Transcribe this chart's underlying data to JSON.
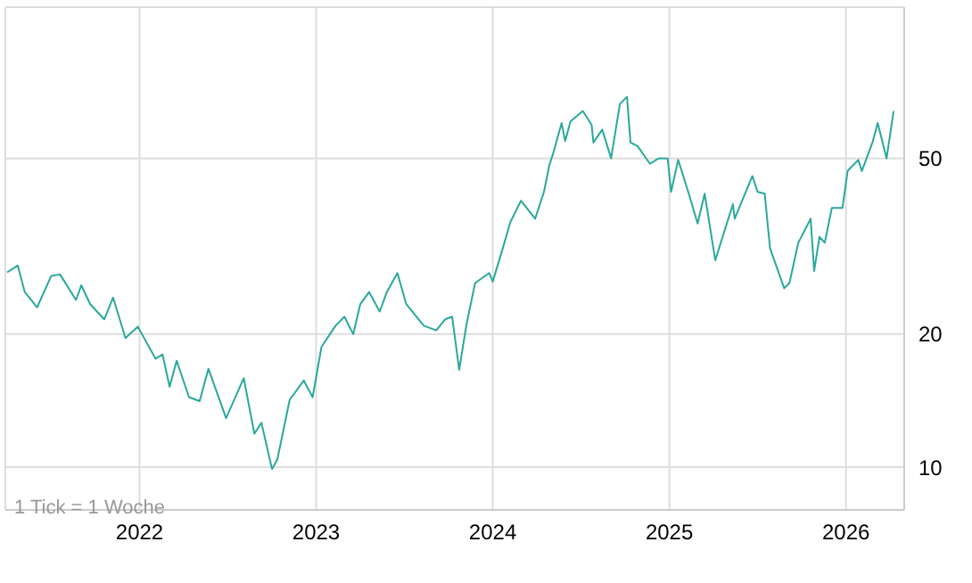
{
  "chart_data": {
    "type": "line",
    "log": "y",
    "grid": true,
    "x": [
      2021.25,
      2021.31,
      2021.35,
      2021.42,
      2021.5,
      2021.55,
      2021.64,
      2021.67,
      2021.72,
      2021.8,
      2021.85,
      2021.92,
      2021.99,
      2022.09,
      2022.13,
      2022.17,
      2022.21,
      2022.28,
      2022.34,
      2022.39,
      2022.49,
      2022.59,
      2022.65,
      2022.69,
      2022.75,
      2022.78,
      2022.85,
      2022.93,
      2022.98,
      2023.03,
      2023.11,
      2023.16,
      2023.21,
      2023.25,
      2023.3,
      2023.36,
      2023.4,
      2023.46,
      2023.51,
      2023.61,
      2023.68,
      2023.73,
      2023.77,
      2023.81,
      2023.85,
      2023.9,
      2023.98,
      2024.0,
      2024.06,
      2024.1,
      2024.16,
      2024.24,
      2024.29,
      2024.32,
      2024.34,
      2024.39,
      2024.41,
      2024.44,
      2024.51,
      2024.56,
      2024.57,
      2024.62,
      2024.67,
      2024.72,
      2024.76,
      2024.78,
      2024.82,
      2024.89,
      2024.94,
      2024.99,
      2025.01,
      2025.05,
      2025.11,
      2025.16,
      2025.2,
      2025.26,
      2025.36,
      2025.37,
      2025.47,
      2025.5,
      2025.54,
      2025.57,
      2025.62,
      2025.65,
      2025.68,
      2025.73,
      2025.8,
      2025.82,
      2025.85,
      2025.88,
      2025.92,
      2025.98,
      2026.01,
      2026.07,
      2026.09,
      2026.15,
      2026.18,
      2026.23,
      2026.27
    ],
    "series": [
      {
        "color": "#2aa89c",
        "values": [
          27.6,
          28.6,
          24.9,
          23.0,
          27.1,
          27.3,
          23.9,
          25.8,
          23.4,
          21.6,
          24.2,
          19.6,
          20.8,
          17.6,
          18.0,
          15.2,
          17.4,
          14.4,
          14.1,
          16.7,
          12.9,
          15.9,
          11.9,
          12.6,
          9.9,
          10.4,
          14.2,
          15.7,
          14.4,
          18.7,
          20.9,
          21.9,
          20.0,
          23.4,
          24.9,
          22.5,
          24.9,
          27.5,
          23.4,
          20.9,
          20.4,
          21.6,
          21.9,
          16.6,
          20.9,
          26.1,
          27.5,
          26.3,
          31.6,
          35.9,
          40.1,
          36.5,
          42.0,
          48.2,
          51,
          60.1,
          54.7,
          60.6,
          64.0,
          59.5,
          54.3,
          58.1,
          50,
          66.4,
          68.9,
          54.3,
          53.3,
          48.6,
          50,
          50,
          42,
          49.6,
          41.6,
          35.6,
          41.6,
          29.4,
          39.4,
          36.5,
          45.6,
          42,
          41.6,
          31.3,
          27.5,
          25.4,
          26.1,
          32.2,
          36.5,
          27.8,
          33.2,
          32.2,
          38.6,
          38.6,
          46.9,
          49.6,
          46.8,
          54.3,
          60.1,
          50,
          64
        ]
      }
    ],
    "xlim": [
      2021.24,
      2026.33
    ],
    "xticks": [
      2022,
      2023,
      2024,
      2025,
      2026
    ],
    "ylim": [
      8,
      110
    ],
    "yticks": [
      10,
      20,
      50
    ],
    "annotations": [
      "1 Tick = 1 Woche"
    ]
  }
}
